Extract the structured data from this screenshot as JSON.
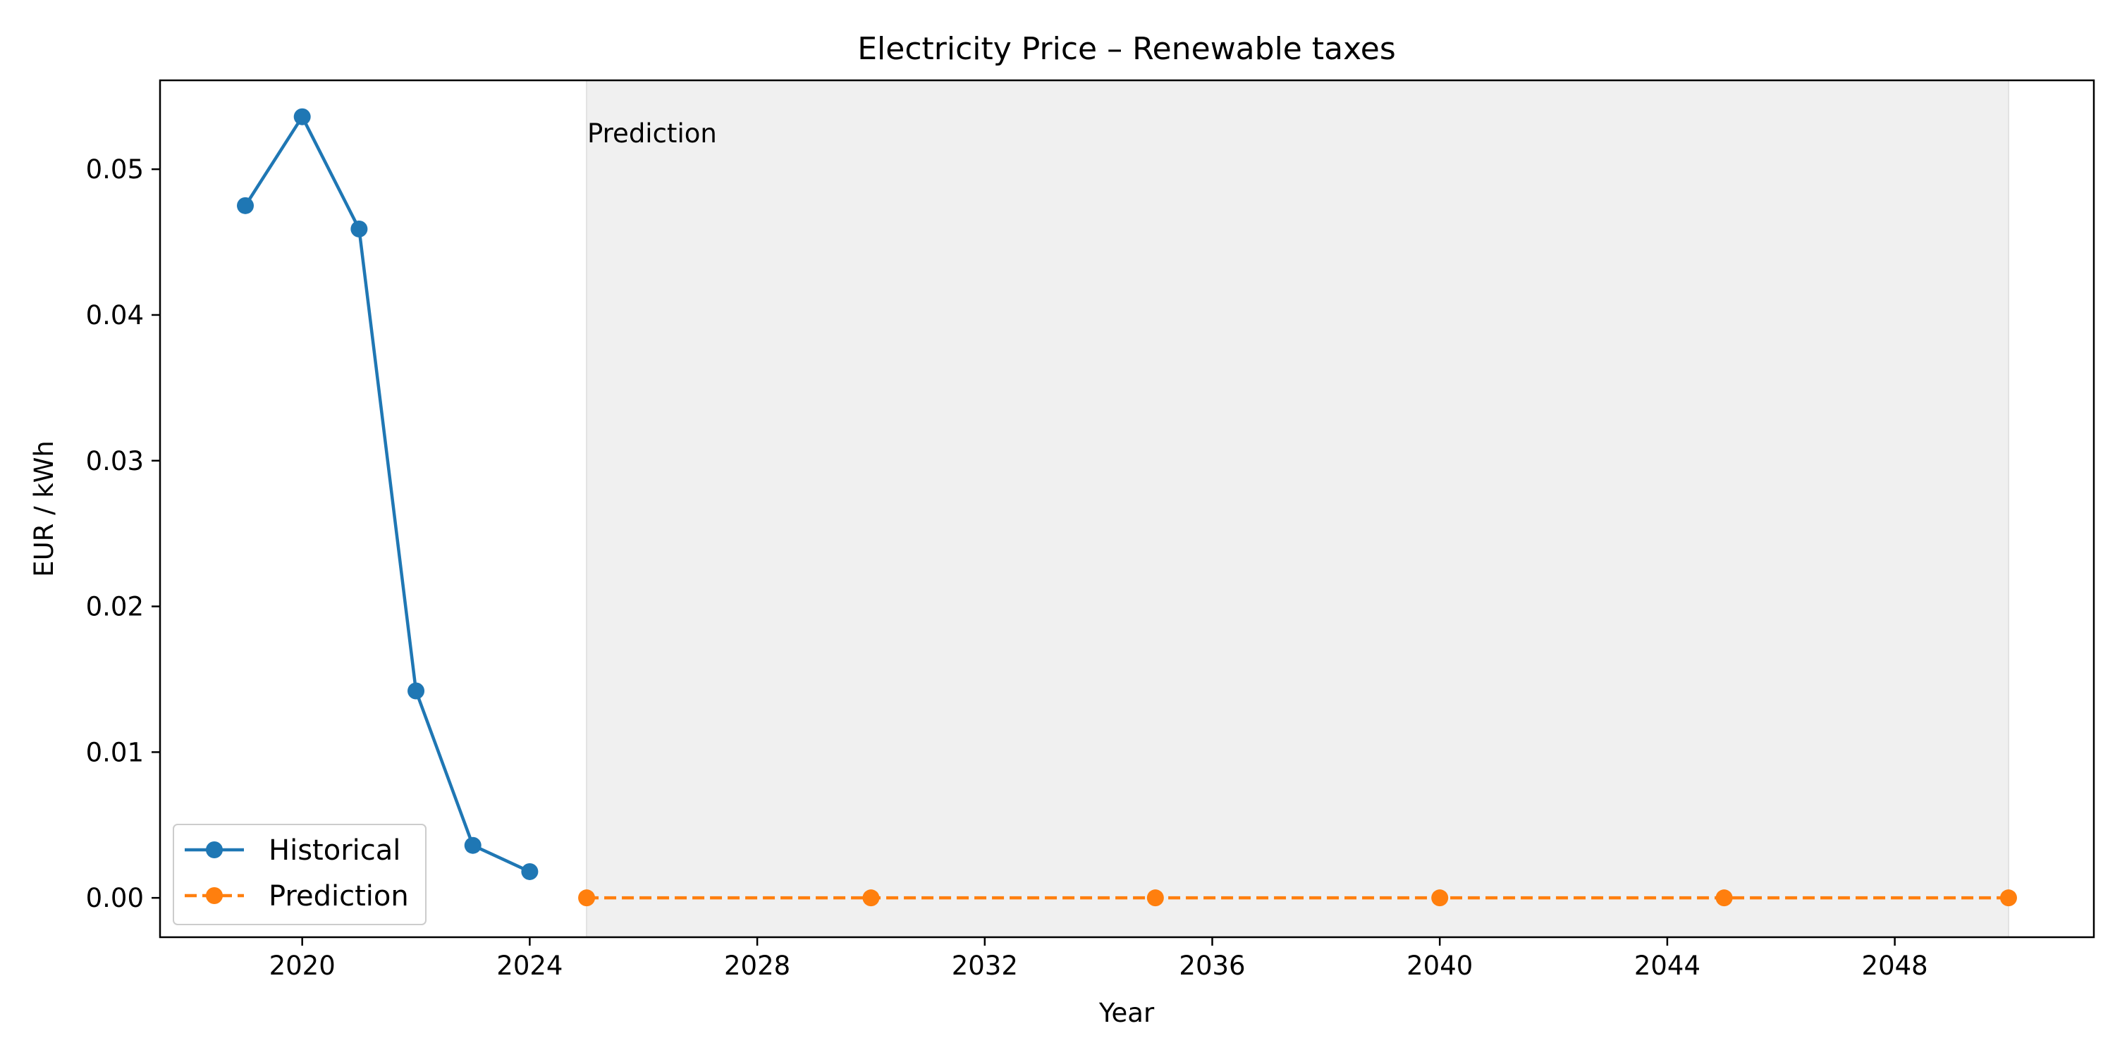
{
  "chart_data": {
    "type": "line",
    "title": "Electricity Price – Renewable taxes",
    "xlabel": "Year",
    "ylabel": "EUR / kWh",
    "xlim": [
      2017.5,
      2051.5
    ],
    "ylim": [
      -0.0027,
      0.0561
    ],
    "xticks": [
      2020,
      2024,
      2028,
      2032,
      2036,
      2040,
      2044,
      2048
    ],
    "yticks": [
      0.0,
      0.01,
      0.02,
      0.03,
      0.04,
      0.05
    ],
    "ytick_labels": [
      "0.00",
      "0.01",
      "0.02",
      "0.03",
      "0.04",
      "0.05"
    ],
    "grid": false,
    "legend_position": "lower left",
    "series": [
      {
        "name": "Historical",
        "color": "#1f77b4",
        "line_style": "solid",
        "marker": "circle",
        "x": [
          2019,
          2020,
          2021,
          2022,
          2023,
          2024
        ],
        "y": [
          0.0475,
          0.0536,
          0.0459,
          0.0142,
          0.0036,
          0.0018
        ]
      },
      {
        "name": "Prediction",
        "color": "#ff7f0e",
        "line_style": "dashed",
        "marker": "circle",
        "x": [
          2025,
          2030,
          2035,
          2040,
          2045,
          2050
        ],
        "y": [
          0.0,
          0.0,
          0.0,
          0.0,
          0.0,
          0.0
        ]
      }
    ],
    "shaded_region": {
      "x_start": 2025,
      "x_end": 2050,
      "color": "#f0f0f0",
      "label": "Prediction"
    }
  }
}
